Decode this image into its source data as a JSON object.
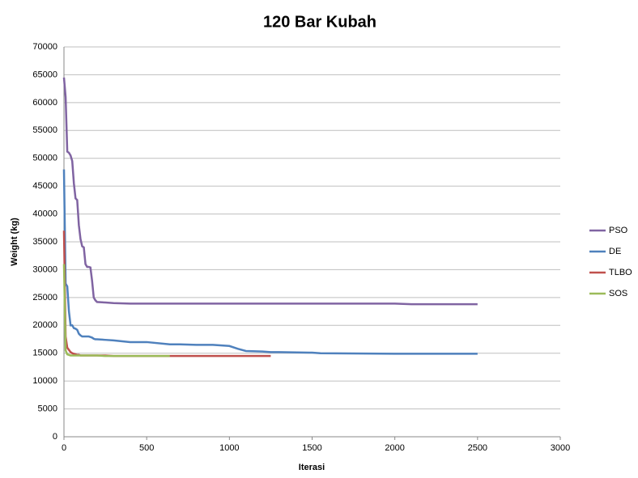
{
  "chart_data": {
    "type": "line",
    "title": "120 Bar Kubah",
    "xlabel": "Iterasi",
    "ylabel": "Weight (kg)",
    "x": [
      0,
      10,
      20,
      30,
      40,
      50,
      60,
      70,
      80,
      90,
      100,
      110,
      120,
      130,
      140,
      150,
      160,
      170,
      180,
      190,
      200,
      250,
      300,
      400,
      500,
      640,
      700,
      800,
      900,
      1000,
      1050,
      1100,
      1200,
      1250,
      1300,
      1500,
      1550,
      2000,
      2100,
      2500
    ],
    "series": [
      {
        "name": "PSO",
        "color": "#8064a2",
        "values": [
          64500,
          61000,
          51200,
          51000,
          50500,
          49500,
          45500,
          42800,
          42500,
          38000,
          35500,
          34200,
          34000,
          31000,
          30500,
          30500,
          30400,
          28000,
          25000,
          24500,
          24200,
          24100,
          24000,
          23900,
          23900,
          23900,
          23900,
          23900,
          23900,
          23900,
          23900,
          23900,
          23900,
          23900,
          23900,
          23900,
          23900,
          23900,
          23800,
          23800
        ]
      },
      {
        "name": "DE",
        "color": "#4f81bd",
        "values": [
          48000,
          27500,
          27000,
          22500,
          20000,
          20000,
          19500,
          19400,
          19200,
          18500,
          18200,
          18000,
          18000,
          18000,
          18000,
          18000,
          17900,
          17800,
          17600,
          17500,
          17500,
          17400,
          17300,
          17000,
          17000,
          16600,
          16600,
          16500,
          16500,
          16300,
          15800,
          15400,
          15300,
          15200,
          15200,
          15100,
          15000,
          14900,
          14900,
          14900
        ]
      },
      {
        "name": "TLBO",
        "color": "#c0504d",
        "values": [
          37000,
          18000,
          16000,
          15600,
          15200,
          15000,
          14900,
          14800,
          14700,
          14700,
          14600,
          14600,
          14600,
          14600,
          14600,
          14600,
          14600,
          14600,
          14600,
          14600,
          14600,
          14600,
          14500,
          14500,
          14500,
          14500,
          14500,
          14500,
          14500,
          14500,
          14500,
          14500,
          14500,
          14500,
          null,
          null,
          null,
          null,
          null,
          null
        ]
      },
      {
        "name": "SOS",
        "color": "#9bbb59",
        "values": [
          31000,
          15500,
          14800,
          14700,
          14600,
          14600,
          14600,
          14600,
          14600,
          14600,
          14600,
          14600,
          14600,
          14600,
          14600,
          14600,
          14600,
          14600,
          14600,
          14600,
          14600,
          14500,
          14500,
          14500,
          14500,
          14500,
          null,
          null,
          null,
          null,
          null,
          null,
          null,
          null,
          null,
          null,
          null,
          null,
          null,
          null
        ]
      }
    ],
    "xlim": [
      0,
      3000
    ],
    "xticks": [
      0,
      500,
      1000,
      1500,
      2000,
      2500,
      3000
    ],
    "ylim": [
      0,
      70000
    ],
    "yticks": [
      0,
      5000,
      10000,
      15000,
      20000,
      25000,
      30000,
      35000,
      40000,
      45000,
      50000,
      55000,
      60000,
      65000,
      70000
    ],
    "grid": true,
    "legend": "right"
  }
}
